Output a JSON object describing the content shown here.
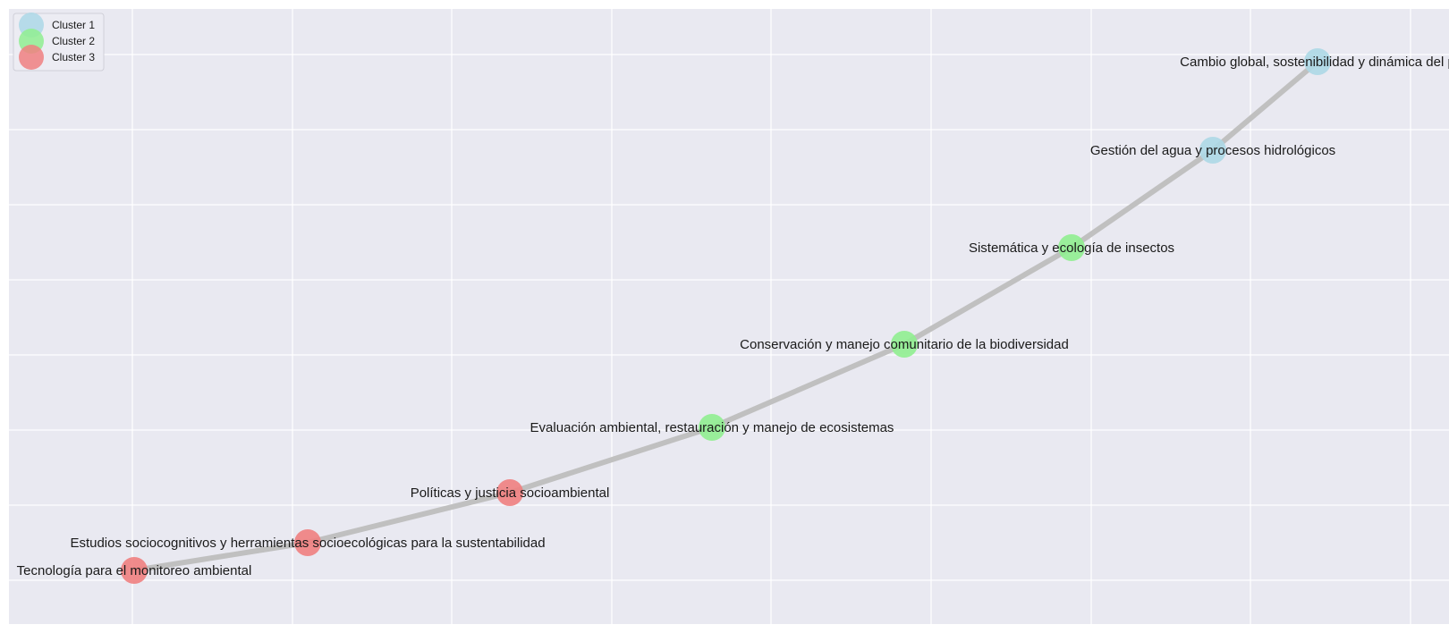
{
  "chart_data": {
    "type": "network",
    "grid": true,
    "background": "#e9e9f1",
    "edge_color": "#c0c0c0",
    "legend": {
      "placement": "top-left",
      "entries": [
        {
          "label": "Cluster 1",
          "color": "#add8e6"
        },
        {
          "label": "Cluster 2",
          "color": "#90ee90"
        },
        {
          "label": "Cluster 3",
          "color": "#f08080"
        }
      ]
    },
    "nodes": [
      {
        "label": "Tecnología para el monitoreo ambiental",
        "cluster": 3
      },
      {
        "label": "Estudios sociocognitivos y herramientas socioecológicas para la sustentabilidad",
        "cluster": 3
      },
      {
        "label": "Políticas y justicia socioambiental",
        "cluster": 3
      },
      {
        "label": "Evaluación ambiental, restauración y manejo de ecosistemas",
        "cluster": 2
      },
      {
        "label": "Conservación y manejo comunitario de la biodiversidad",
        "cluster": 2
      },
      {
        "label": "Sistemática y ecología de insectos",
        "cluster": 2
      },
      {
        "label": "Gestión del agua y procesos hidrológicos",
        "cluster": 1
      },
      {
        "label": "Cambio global, sostenibilidad y dinámica del p",
        "cluster": 1
      }
    ]
  }
}
